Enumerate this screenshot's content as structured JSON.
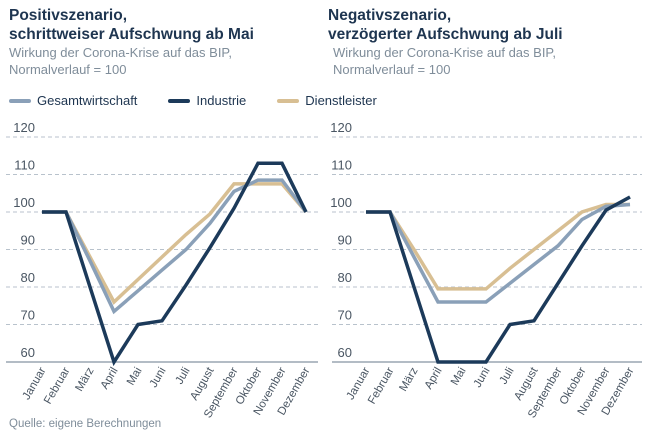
{
  "legend": [
    {
      "label": "Gesamtwirtschaft",
      "color": "#8aa0b8"
    },
    {
      "label": "Industrie",
      "color": "#1c3a5a"
    },
    {
      "label": "Dienstleister",
      "color": "#d8bf93"
    }
  ],
  "source": "Quelle: eigene Berechnungen",
  "chart_data": [
    {
      "type": "line",
      "title": "Positivszenario, schrittweiser Aufschwung ab Mai",
      "title_lines": [
        "Positivszenario,",
        "schrittweiser Aufschwung ab Mai"
      ],
      "subtitle_lines": [
        "Wirkung der Corona-Krise auf das BIP,",
        "Normalverlauf = 100"
      ],
      "xlabel": "",
      "ylabel": "",
      "ylim": [
        60,
        120
      ],
      "yticks": [
        "60",
        "70",
        "80",
        "90",
        "100",
        "110",
        "120"
      ],
      "grid": true,
      "legend_position": "top",
      "categories": [
        "Januar",
        "Februar",
        "März",
        "April",
        "Mai",
        "Juni",
        "Juli",
        "August",
        "September",
        "Oktober",
        "November",
        "Dezember"
      ],
      "series": [
        {
          "name": "Gesamtwirtschaft",
          "values": [
            100,
            100,
            87,
            73.5,
            79,
            84.5,
            90,
            97,
            105.5,
            108.5,
            108.5,
            100
          ]
        },
        {
          "name": "Industrie",
          "values": [
            100,
            100,
            80,
            60,
            70,
            71,
            80.5,
            90.5,
            101,
            113,
            113,
            100
          ]
        },
        {
          "name": "Dienstleister",
          "values": [
            100,
            100,
            88,
            76,
            82,
            88,
            94,
            99.5,
            107.5,
            107.5,
            107.5,
            100
          ]
        }
      ]
    },
    {
      "type": "line",
      "title": "Negativszenario, verzögerter Aufschwung ab Juli",
      "title_lines": [
        "Negativszenario,",
        "verzögerter Aufschwung ab Juli"
      ],
      "subtitle_lines": [
        "Wirkung der Corona-Krise auf das BIP,",
        "Normalverlauf = 100"
      ],
      "xlabel": "",
      "ylabel": "",
      "ylim": [
        60,
        120
      ],
      "yticks": [
        "60",
        "70",
        "80",
        "90",
        "100",
        "110",
        "120"
      ],
      "grid": true,
      "legend_position": "top",
      "categories": [
        "Januar",
        "Februar",
        "März",
        "April",
        "Mai",
        "Juni",
        "Juli",
        "August",
        "September",
        "Oktober",
        "November",
        "Dezember"
      ],
      "series": [
        {
          "name": "Gesamtwirtschaft",
          "values": [
            100,
            100,
            88,
            76,
            76,
            76,
            81,
            86,
            91,
            98,
            101.5,
            102
          ]
        },
        {
          "name": "Industrie",
          "values": [
            100,
            100,
            80,
            60,
            60,
            60,
            70,
            71,
            81,
            91,
            100.5,
            104
          ]
        },
        {
          "name": "Dienstleister",
          "values": [
            100,
            100,
            90,
            79.5,
            79.5,
            79.5,
            85,
            90,
            95,
            100,
            102,
            102
          ]
        }
      ]
    }
  ]
}
